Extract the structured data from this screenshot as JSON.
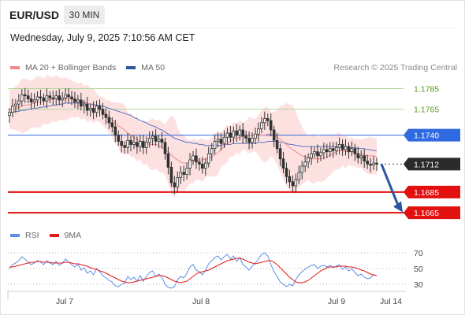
{
  "header": {
    "pair": "EUR/USD",
    "timeframe": "30 MIN",
    "timestamp": "Wednesday, July 9, 2025 7:10:56 AM CET"
  },
  "legend": {
    "ma20_bb": "MA 20 + Bollinger Bands",
    "ma50": "MA 50",
    "copyright": "Research © 2025 Trading Central",
    "rsi": "RSI",
    "ma9": "9MA"
  },
  "colors": {
    "bb_fill": "#fde1e1",
    "ma20": "#f08a8a",
    "ma50": "#5b73c4",
    "candle": "#333333",
    "resistance": "#b2d69a",
    "resistance_text": "#5a9a1e",
    "pivot": "#2f6ae0",
    "support": "#e31010",
    "arrow": "#2a56a0",
    "rsi": "#5b8fe6",
    "ma9": "#e31a1a"
  },
  "chart_data": [
    {
      "type": "candlestick",
      "title": "EUR/USD 30 MIN",
      "x_ticks": [
        "Jul 7",
        "Jul 8",
        "Jul 9",
        "Jul 14"
      ],
      "ylim": [
        1.1656,
        1.1796
      ],
      "levels": [
        {
          "value": 1.1785,
          "label": "1.1785",
          "kind": "resistance"
        },
        {
          "value": 1.1765,
          "label": "1.1765",
          "kind": "resistance"
        },
        {
          "value": 1.174,
          "label": "1.1740",
          "kind": "pivot"
        },
        {
          "value": 1.1712,
          "label": "1.1712",
          "kind": "last"
        },
        {
          "value": 1.1685,
          "label": "1.1685",
          "kind": "support"
        },
        {
          "value": 1.1665,
          "label": "1.1665",
          "kind": "support"
        }
      ],
      "close": [
        1.1762,
        1.1768,
        1.177,
        1.1773,
        1.1779,
        1.1778,
        1.1775,
        1.1772,
        1.1774,
        1.1777,
        1.1776,
        1.1773,
        1.1778,
        1.1776,
        1.1775,
        1.1778,
        1.1774,
        1.1776,
        1.1779,
        1.1777,
        1.1775,
        1.1772,
        1.1774,
        1.1768,
        1.177,
        1.1764,
        1.1766,
        1.1762,
        1.1768,
        1.1765,
        1.176,
        1.1757,
        1.1752,
        1.1748,
        1.174,
        1.1734,
        1.173,
        1.1728,
        1.1735,
        1.1731,
        1.1733,
        1.1729,
        1.1734,
        1.1728,
        1.1733,
        1.1737,
        1.1739,
        1.1734,
        1.1736,
        1.1733,
        1.1722,
        1.1709,
        1.1694,
        1.169,
        1.1699,
        1.1704,
        1.1702,
        1.1708,
        1.1716,
        1.172,
        1.1714,
        1.1712,
        1.1708,
        1.1713,
        1.1722,
        1.1727,
        1.1734,
        1.1736,
        1.1732,
        1.1738,
        1.1742,
        1.1738,
        1.1744,
        1.174,
        1.1745,
        1.1739,
        1.1737,
        1.1733,
        1.1737,
        1.1741,
        1.1746,
        1.1752,
        1.1756,
        1.1754,
        1.1745,
        1.1735,
        1.1727,
        1.1717,
        1.1708,
        1.17,
        1.1695,
        1.1691,
        1.1697,
        1.1704,
        1.171,
        1.1714,
        1.1718,
        1.1722,
        1.1724,
        1.172,
        1.1723,
        1.1726,
        1.1724,
        1.1727,
        1.1725,
        1.1728,
        1.1731,
        1.1726,
        1.1729,
        1.1724,
        1.1727,
        1.1722,
        1.1718,
        1.172,
        1.1715,
        1.1712,
        1.1711,
        1.1713,
        1.1712
      ],
      "ma20": [
        1.1765,
        1.1765,
        1.1766,
        1.1767,
        1.1768,
        1.1769,
        1.1769,
        1.177,
        1.1771,
        1.1772,
        1.1772,
        1.1773,
        1.1774,
        1.1774,
        1.1775,
        1.1775,
        1.1775,
        1.1775,
        1.1775,
        1.1775,
        1.1775,
        1.1774,
        1.1774,
        1.1773,
        1.1772,
        1.1771,
        1.177,
        1.1768,
        1.1767,
        1.1765,
        1.1763,
        1.176,
        1.1758,
        1.1755,
        1.1752,
        1.1749,
        1.1747,
        1.1745,
        1.1742,
        1.174,
        1.1738,
        1.1736,
        1.1734,
        1.1733,
        1.1732,
        1.1731,
        1.1731,
        1.1731,
        1.173,
        1.1728,
        1.1726,
        1.1724,
        1.1721,
        1.1718,
        1.1716,
        1.1714,
        1.1713,
        1.1713,
        1.1714,
        1.1715,
        1.1716,
        1.1716,
        1.1716,
        1.1717,
        1.1718,
        1.1719,
        1.1721,
        1.1723,
        1.1726,
        1.1729,
        1.1732,
        1.1734,
        1.1736,
        1.1737,
        1.1738,
        1.1739,
        1.1739,
        1.174,
        1.174,
        1.174,
        1.174,
        1.174,
        1.174,
        1.1741,
        1.1741,
        1.174,
        1.1738,
        1.1736,
        1.1733,
        1.1731,
        1.1728,
        1.1726,
        1.1724,
        1.1722,
        1.172,
        1.1719,
        1.1718,
        1.1717,
        1.1717,
        1.1717,
        1.1717,
        1.1718,
        1.1719,
        1.1721,
        1.1722,
        1.1724,
        1.1725,
        1.1725,
        1.1724,
        1.1724,
        1.1724,
        1.1723,
        1.1722,
        1.1722,
        1.1721,
        1.172,
        1.172,
        1.172,
        1.1719
      ],
      "ma50": [
        1.1762,
        1.1762,
        1.1763,
        1.1763,
        1.1764,
        1.1764,
        1.1765,
        1.1765,
        1.1766,
        1.1766,
        1.1767,
        1.1767,
        1.1768,
        1.1768,
        1.1769,
        1.1769,
        1.177,
        1.177,
        1.1771,
        1.1771,
        1.1771,
        1.1771,
        1.1771,
        1.1771,
        1.1771,
        1.1771,
        1.177,
        1.177,
        1.1769,
        1.1769,
        1.1768,
        1.1767,
        1.1766,
        1.1765,
        1.1764,
        1.1763,
        1.1762,
        1.1761,
        1.176,
        1.1759,
        1.1757,
        1.1756,
        1.1754,
        1.1753,
        1.1752,
        1.175,
        1.1749,
        1.1748,
        1.1746,
        1.1745,
        1.1743,
        1.1741,
        1.1739,
        1.1737,
        1.1736,
        1.1735,
        1.1734,
        1.1733,
        1.1733,
        1.1732,
        1.1732,
        1.1731,
        1.1731,
        1.173,
        1.173,
        1.173,
        1.173,
        1.173,
        1.173,
        1.1731,
        1.1731,
        1.1731,
        1.1732,
        1.1732,
        1.1732,
        1.1732,
        1.1732,
        1.1732,
        1.1732,
        1.1732,
        1.1733,
        1.1733,
        1.1733,
        1.1734,
        1.1734,
        1.1734,
        1.1734,
        1.1733,
        1.1733,
        1.1732,
        1.1731,
        1.1731,
        1.173,
        1.173,
        1.1729,
        1.1729,
        1.1729,
        1.1729,
        1.1729,
        1.1729,
        1.1729,
        1.1729,
        1.1729,
        1.1729,
        1.1729,
        1.1729,
        1.1729,
        1.1729,
        1.1729,
        1.1728,
        1.1728,
        1.1728,
        1.1727,
        1.1727,
        1.1727,
        1.1726,
        1.1726,
        1.1725,
        1.1725
      ],
      "forecast": {
        "from": 1.1712,
        "to": 1.1667
      }
    },
    {
      "type": "line",
      "title": "RSI",
      "yticks": [
        30,
        50,
        70
      ],
      "ylim": [
        25,
        75
      ],
      "series": [
        {
          "name": "RSI",
          "values": [
            50,
            55,
            57,
            60,
            65,
            62,
            58,
            55,
            57,
            60,
            58,
            55,
            60,
            57,
            55,
            59,
            54,
            57,
            62,
            58,
            55,
            52,
            55,
            48,
            51,
            44,
            47,
            42,
            50,
            46,
            41,
            38,
            35,
            33,
            28,
            27,
            30,
            31,
            40,
            36,
            39,
            34,
            41,
            34,
            40,
            45,
            47,
            40,
            43,
            39,
            30,
            26,
            25,
            27,
            36,
            40,
            38,
            44,
            52,
            55,
            48,
            46,
            42,
            48,
            56,
            60,
            64,
            66,
            61,
            65,
            68,
            62,
            66,
            59,
            64,
            55,
            52,
            48,
            53,
            57,
            62,
            68,
            70,
            66,
            55,
            46,
            40,
            33,
            30,
            27,
            30,
            28,
            36,
            42,
            46,
            49,
            52,
            54,
            55,
            50,
            53,
            54,
            52,
            54,
            51,
            53,
            55,
            49,
            52,
            47,
            50,
            45,
            41,
            43,
            39,
            37,
            38,
            42,
            41
          ]
        },
        {
          "name": "9MA",
          "values": [
            52,
            52,
            53,
            54,
            55,
            56,
            57,
            58,
            58,
            59,
            59,
            58,
            58,
            58,
            57,
            57,
            57,
            57,
            58,
            58,
            57,
            56,
            56,
            55,
            54,
            53,
            51,
            50,
            49,
            47,
            46,
            44,
            42,
            40,
            38,
            36,
            34,
            33,
            32,
            32,
            33,
            34,
            35,
            36,
            37,
            38,
            39,
            40,
            41,
            41,
            40,
            38,
            36,
            34,
            33,
            32,
            33,
            34,
            37,
            40,
            43,
            45,
            46,
            47,
            48,
            50,
            52,
            54,
            56,
            58,
            60,
            61,
            62,
            63,
            63,
            62,
            60,
            58,
            57,
            56,
            57,
            58,
            59,
            60,
            60,
            58,
            55,
            51,
            47,
            43,
            39,
            36,
            33,
            32,
            32,
            33,
            35,
            38,
            41,
            44,
            47,
            49,
            51,
            52,
            52,
            52,
            53,
            53,
            53,
            52,
            52,
            51,
            50,
            48,
            47,
            45,
            43,
            42,
            41
          ]
        }
      ]
    }
  ]
}
